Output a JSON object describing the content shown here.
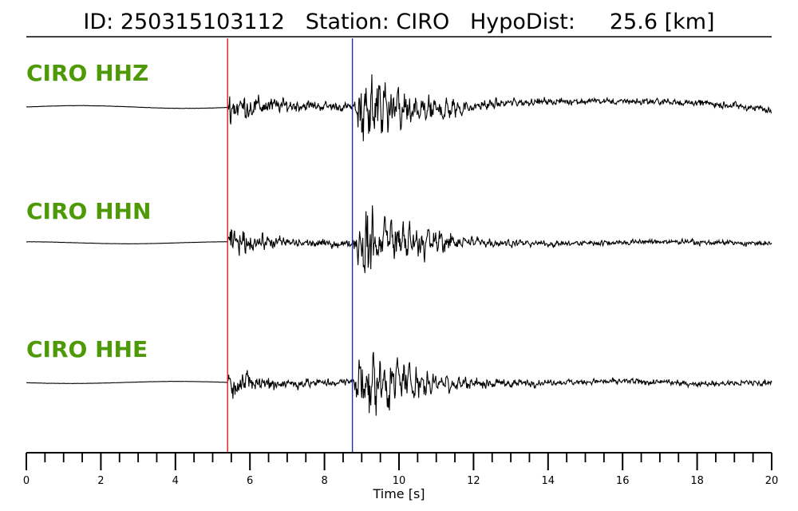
{
  "header": {
    "id_label": "ID: 250315103112",
    "station_label": "Station: CIRO",
    "hypodist_label": "HypoDist:",
    "hypodist_value": "25.6 [km]"
  },
  "chart_data": {
    "type": "line",
    "title": "ID: 250315103112   Station: CIRO   HypoDist:     25.6 [km]",
    "xlabel": "Time [s]",
    "ylabel": "",
    "xlim": [
      0,
      20
    ],
    "major_ticks": [
      0,
      2,
      4,
      6,
      8,
      10,
      12,
      14,
      16,
      18,
      20
    ],
    "minor_tick_step": 0.5,
    "grid": false,
    "picks": [
      {
        "phase": "P",
        "time": 5.4,
        "color": "#e41a1c"
      },
      {
        "phase": "S",
        "time": 8.75,
        "color": "#1f2fc0"
      }
    ],
    "series": [
      {
        "name": "CIRO HHZ",
        "pre_event_level": 0.04,
        "p_amplitude": 0.6,
        "s_amplitude": 1.0,
        "coda_level": 0.15,
        "end_drift": 0.12
      },
      {
        "name": "CIRO HHN",
        "pre_event_level": 0.03,
        "p_amplitude": 0.5,
        "s_amplitude": 1.0,
        "coda_level": 0.12,
        "end_drift": 0.0
      },
      {
        "name": "CIRO HHE",
        "pre_event_level": 0.03,
        "p_amplitude": 0.5,
        "s_amplitude": 1.0,
        "coda_level": 0.13,
        "end_drift": 0.0
      }
    ],
    "colors": {
      "trace": "#000000",
      "channel_label": "#4e9a06"
    }
  }
}
